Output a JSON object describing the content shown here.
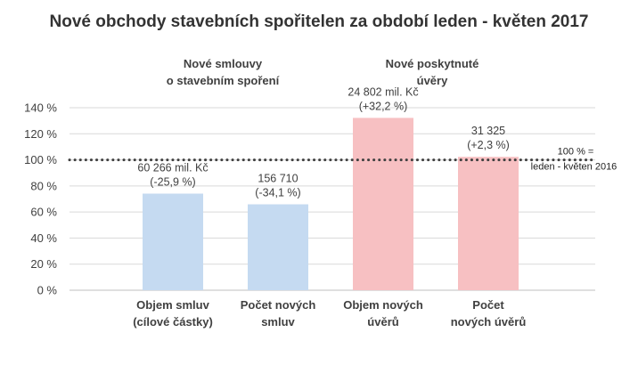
{
  "chart_data": {
    "type": "bar",
    "title": "Nové obchody stavebních spořitelen za období leden - květen 2017",
    "groups": [
      {
        "label_lines": [
          "Nové smlouvy",
          "o stavebním spoření"
        ],
        "color": "#c5daf1"
      },
      {
        "label_lines": [
          "Nové poskytnuté",
          "úvěry"
        ],
        "color": "#f7c0c2"
      }
    ],
    "categories": [
      {
        "lines": [
          "Objem smluv",
          "(cílové částky)"
        ],
        "group": 0
      },
      {
        "lines": [
          "Počet  nových",
          "smluv"
        ],
        "group": 0
      },
      {
        "lines": [
          "Objem nových",
          "úvěrů"
        ],
        "group": 1
      },
      {
        "lines": [
          "Počet",
          "nových úvěrů"
        ],
        "group": 1
      }
    ],
    "values": [
      74.1,
      65.9,
      132.2,
      102.3
    ],
    "data_labels": [
      [
        "60 266 mil. Kč",
        "(-25,9  %)"
      ],
      [
        "156 710",
        "(-34,1 %)"
      ],
      [
        "24 802 mil. Kč",
        "(+32,2 %)"
      ],
      [
        "31 325",
        "(+2,3 %)"
      ]
    ],
    "ylim": [
      0,
      140
    ],
    "yticks": [
      0,
      20,
      40,
      60,
      80,
      100,
      120,
      140
    ],
    "ytick_labels": [
      "0 %",
      "20 %",
      "40 %",
      "60 %",
      "80 %",
      "100 %",
      "120 %",
      "140 %"
    ],
    "reference_line": {
      "value": 100,
      "label_lines": [
        "100 % =",
        "leden - květen 2016"
      ]
    },
    "grid": true,
    "gridline_color": "#d9d9d9",
    "reference_line_color": "#404040"
  }
}
